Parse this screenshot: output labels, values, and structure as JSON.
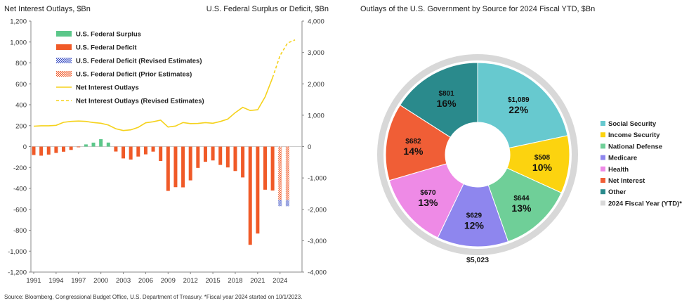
{
  "footnote": "Source: Bloomberg, Congressional Budget Office, U.S. Department of Treasury. *Fiscal year 2024 started on 10/1/2023.",
  "chart_data": [
    {
      "type": "bar",
      "left_axis_title": "Net Interest Outlays, $Bn",
      "right_axis_title": "U.S. Federal Surplus or Deficit, $Bn",
      "left_ylim": [
        -1200,
        1200
      ],
      "left_ticks": [
        1200,
        1000,
        800,
        600,
        400,
        200,
        0,
        -200,
        -400,
        -600,
        -800,
        -1000,
        -1200
      ],
      "left_tick_labels": [
        "1,200",
        "1,000",
        "800",
        "600",
        "400",
        "200",
        "0",
        "-200",
        "-400",
        "-600",
        "-800",
        "-1,000",
        "-1,200"
      ],
      "right_ylim": [
        -4000,
        4000
      ],
      "right_ticks": [
        4000,
        3000,
        2000,
        1000,
        0,
        -1000,
        -2000,
        -3000,
        -4000
      ],
      "right_tick_labels": [
        "4,000",
        "3,000",
        "2,000",
        "1,000",
        "0",
        "-1,000",
        "-2,000",
        "-3,000",
        "-4,000"
      ],
      "x_range": [
        1991,
        2026
      ],
      "x_tick_labels": [
        "1991",
        "1994",
        "1997",
        "2000",
        "2003",
        "2006",
        "2009",
        "2012",
        "2015",
        "2018",
        "2021",
        "2024"
      ],
      "colors": {
        "surplus": "#5cc78a",
        "deficit": "#f05a28",
        "revised": "#3b4fc4",
        "line": "#f5d21c"
      },
      "legend": [
        {
          "label": "U.S. Federal Surplus",
          "kind": "surplus"
        },
        {
          "label": "U.S. Federal Deficit",
          "kind": "deficit"
        },
        {
          "label": "U.S. Federal Deficit (Revised Estimates)",
          "kind": "revised"
        },
        {
          "label": "U.S. Federal Deficit (Prior Estimates)",
          "kind": "prior"
        },
        {
          "label": "Net Interest Outlays",
          "kind": "line"
        },
        {
          "label": "Net Interest Outlays (Revised Estimates)",
          "kind": "dashed"
        }
      ],
      "balance_bars": [
        {
          "x": 1991,
          "value": -269
        },
        {
          "x": 1992,
          "value": -290
        },
        {
          "x": 1993,
          "value": -255
        },
        {
          "x": 1994,
          "value": -203
        },
        {
          "x": 1995,
          "value": -164
        },
        {
          "x": 1996,
          "value": -107
        },
        {
          "x": 1997,
          "value": -22
        },
        {
          "x": 1998,
          "value": 69
        },
        {
          "x": 1999,
          "value": 126
        },
        {
          "x": 2000,
          "value": 236
        },
        {
          "x": 2001,
          "value": 128
        },
        {
          "x": 2002,
          "value": -158
        },
        {
          "x": 2003,
          "value": -378
        },
        {
          "x": 2004,
          "value": -413
        },
        {
          "x": 2005,
          "value": -318
        },
        {
          "x": 2006,
          "value": -248
        },
        {
          "x": 2007,
          "value": -161
        },
        {
          "x": 2008,
          "value": -459
        },
        {
          "x": 2009,
          "value": -1413
        },
        {
          "x": 2010,
          "value": -1294
        },
        {
          "x": 2011,
          "value": -1300
        },
        {
          "x": 2012,
          "value": -1077
        },
        {
          "x": 2013,
          "value": -680
        },
        {
          "x": 2014,
          "value": -485
        },
        {
          "x": 2015,
          "value": -442
        },
        {
          "x": 2016,
          "value": -585
        },
        {
          "x": 2017,
          "value": -665
        },
        {
          "x": 2018,
          "value": -779
        },
        {
          "x": 2019,
          "value": -984
        },
        {
          "x": 2020,
          "value": -3132
        },
        {
          "x": 2021,
          "value": -2772
        },
        {
          "x": 2022,
          "value": -1375
        },
        {
          "x": 2023,
          "value": -1400
        }
      ],
      "estimate_bars": [
        {
          "x": 2024,
          "prior": -1700,
          "revised": -1900
        },
        {
          "x": 2025,
          "prior": -1700,
          "revised": -1900
        }
      ],
      "net_interest": [
        {
          "x": 1991,
          "y": 195
        },
        {
          "x": 1992,
          "y": 199
        },
        {
          "x": 1993,
          "y": 199
        },
        {
          "x": 1994,
          "y": 203
        },
        {
          "x": 1995,
          "y": 232
        },
        {
          "x": 1996,
          "y": 241
        },
        {
          "x": 1997,
          "y": 244
        },
        {
          "x": 1998,
          "y": 241
        },
        {
          "x": 1999,
          "y": 230
        },
        {
          "x": 2000,
          "y": 223
        },
        {
          "x": 2001,
          "y": 206
        },
        {
          "x": 2002,
          "y": 171
        },
        {
          "x": 2003,
          "y": 153
        },
        {
          "x": 2004,
          "y": 160
        },
        {
          "x": 2005,
          "y": 184
        },
        {
          "x": 2006,
          "y": 227
        },
        {
          "x": 2007,
          "y": 237
        },
        {
          "x": 2008,
          "y": 253
        },
        {
          "x": 2009,
          "y": 187
        },
        {
          "x": 2010,
          "y": 196
        },
        {
          "x": 2011,
          "y": 230
        },
        {
          "x": 2012,
          "y": 220
        },
        {
          "x": 2013,
          "y": 221
        },
        {
          "x": 2014,
          "y": 229
        },
        {
          "x": 2015,
          "y": 223
        },
        {
          "x": 2016,
          "y": 240
        },
        {
          "x": 2017,
          "y": 263
        },
        {
          "x": 2018,
          "y": 325
        },
        {
          "x": 2019,
          "y": 375
        },
        {
          "x": 2020,
          "y": 345
        },
        {
          "x": 2021,
          "y": 352
        },
        {
          "x": 2022,
          "y": 475
        },
        {
          "x": 2023,
          "y": 659
        }
      ],
      "net_interest_revised": [
        {
          "x": 2023,
          "y": 659
        },
        {
          "x": 2024,
          "y": 870
        },
        {
          "x": 2025,
          "y": 990
        },
        {
          "x": 2026,
          "y": 1020
        }
      ]
    },
    {
      "type": "pie",
      "title": "Outlays of the U.S. Government by Source for 2024 Fiscal YTD, $Bn",
      "total_label": "$5,023",
      "ring_color": "#d8d8d8",
      "slices": [
        {
          "name": "Social Security",
          "value": 1089,
          "value_label": "$1,089",
          "pct_label": "22%",
          "color": "#67c9cf"
        },
        {
          "name": "Income Security",
          "value": 508,
          "value_label": "$508",
          "pct_label": "10%",
          "color": "#fcd30f"
        },
        {
          "name": "National Defense",
          "value": 644,
          "value_label": "$644",
          "pct_label": "13%",
          "color": "#6fcf98"
        },
        {
          "name": "Medicare",
          "value": 629,
          "value_label": "$629",
          "pct_label": "12%",
          "color": "#8e86ee"
        },
        {
          "name": "Health",
          "value": 670,
          "value_label": "$670",
          "pct_label": "13%",
          "color": "#ee8ae6"
        },
        {
          "name": "Net Interest",
          "value": 682,
          "value_label": "$682",
          "pct_label": "14%",
          "color": "#f05e36"
        },
        {
          "name": "Other",
          "value": 801,
          "value_label": "$801",
          "pct_label": "16%",
          "color": "#2a8a8c"
        }
      ],
      "legend_extra": {
        "name": "2024 Fiscal Year (YTD)*",
        "color": "#d8d8d8"
      }
    }
  ]
}
